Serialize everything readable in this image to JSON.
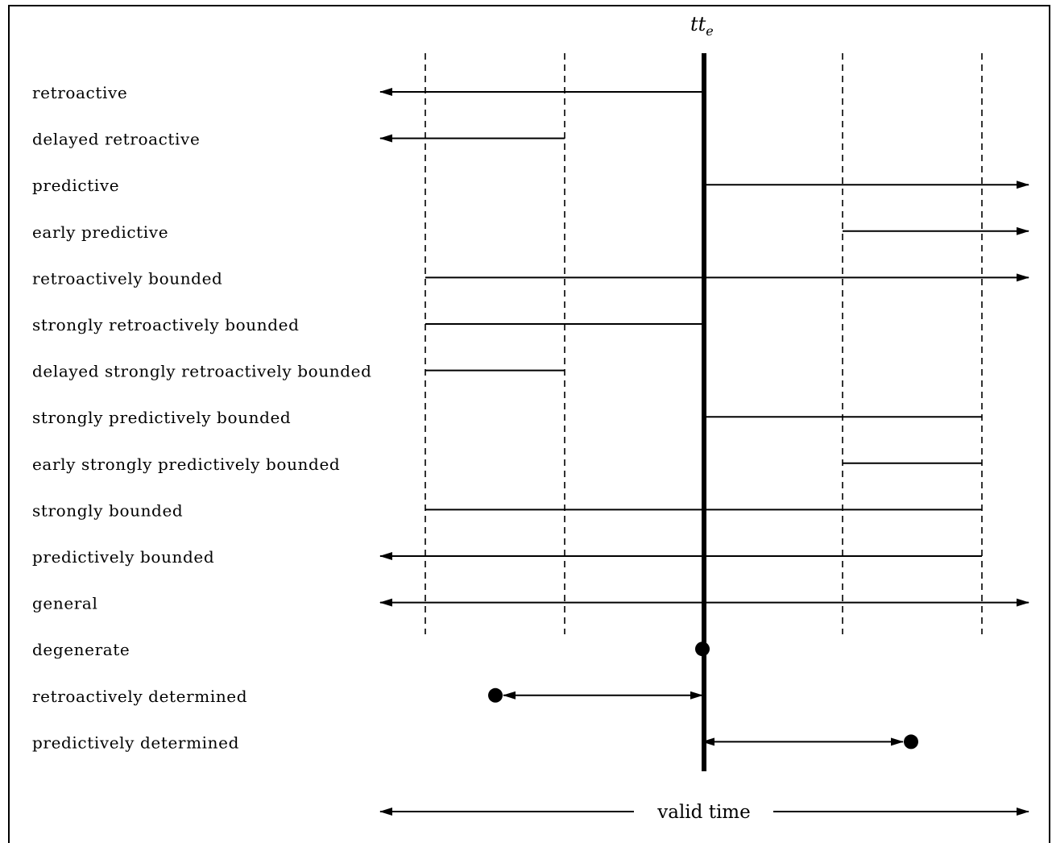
{
  "reference": {
    "main": "tt",
    "subscript": "e"
  },
  "axis": {
    "label": "valid time"
  },
  "rows": [
    {
      "label": "retroactive",
      "segment": {
        "from": "left-inf",
        "to": "ref",
        "left": "arrow",
        "right": "none"
      }
    },
    {
      "label": "delayed retroactive",
      "segment": {
        "from": "left-inf",
        "to": "d2",
        "left": "arrow",
        "right": "none"
      }
    },
    {
      "label": "predictive",
      "segment": {
        "from": "ref",
        "to": "right-inf",
        "left": "none",
        "right": "arrow"
      }
    },
    {
      "label": "early predictive",
      "segment": {
        "from": "d3",
        "to": "right-inf",
        "left": "none",
        "right": "arrow"
      }
    },
    {
      "label": "retroactively bounded",
      "segment": {
        "from": "d1",
        "to": "right-inf",
        "left": "none",
        "right": "arrow"
      }
    },
    {
      "label": "strongly retroactively bounded",
      "segment": {
        "from": "d1",
        "to": "ref",
        "left": "none",
        "right": "none"
      }
    },
    {
      "label": "delayed strongly retroactively bounded",
      "segment": {
        "from": "d1",
        "to": "d2",
        "left": "none",
        "right": "none"
      }
    },
    {
      "label": "strongly predictively bounded",
      "segment": {
        "from": "ref",
        "to": "d4",
        "left": "none",
        "right": "none"
      }
    },
    {
      "label": "early strongly predictively bounded",
      "segment": {
        "from": "d3",
        "to": "d4",
        "left": "none",
        "right": "none"
      }
    },
    {
      "label": "strongly bounded",
      "segment": {
        "from": "d1",
        "to": "d4",
        "left": "none",
        "right": "none"
      }
    },
    {
      "label": "predictively bounded",
      "segment": {
        "from": "left-inf",
        "to": "d4",
        "left": "arrow",
        "right": "none"
      }
    },
    {
      "label": "general",
      "segment": {
        "from": "left-inf",
        "to": "right-inf",
        "left": "arrow",
        "right": "arrow"
      }
    },
    {
      "label": "degenerate",
      "segment": {
        "from": "ref",
        "to": "ref",
        "left": "none",
        "right": "none",
        "dot": "ref"
      }
    },
    {
      "label": "retroactively determined",
      "segment": {
        "from": "past-point",
        "to": "ref",
        "left": "arrow",
        "right": "arrow",
        "dot": "past-point"
      }
    },
    {
      "label": "predictively determined",
      "segment": {
        "from": "ref",
        "to": "future-point",
        "left": "arrow",
        "right": "arrow",
        "dot": "future-point"
      }
    }
  ]
}
